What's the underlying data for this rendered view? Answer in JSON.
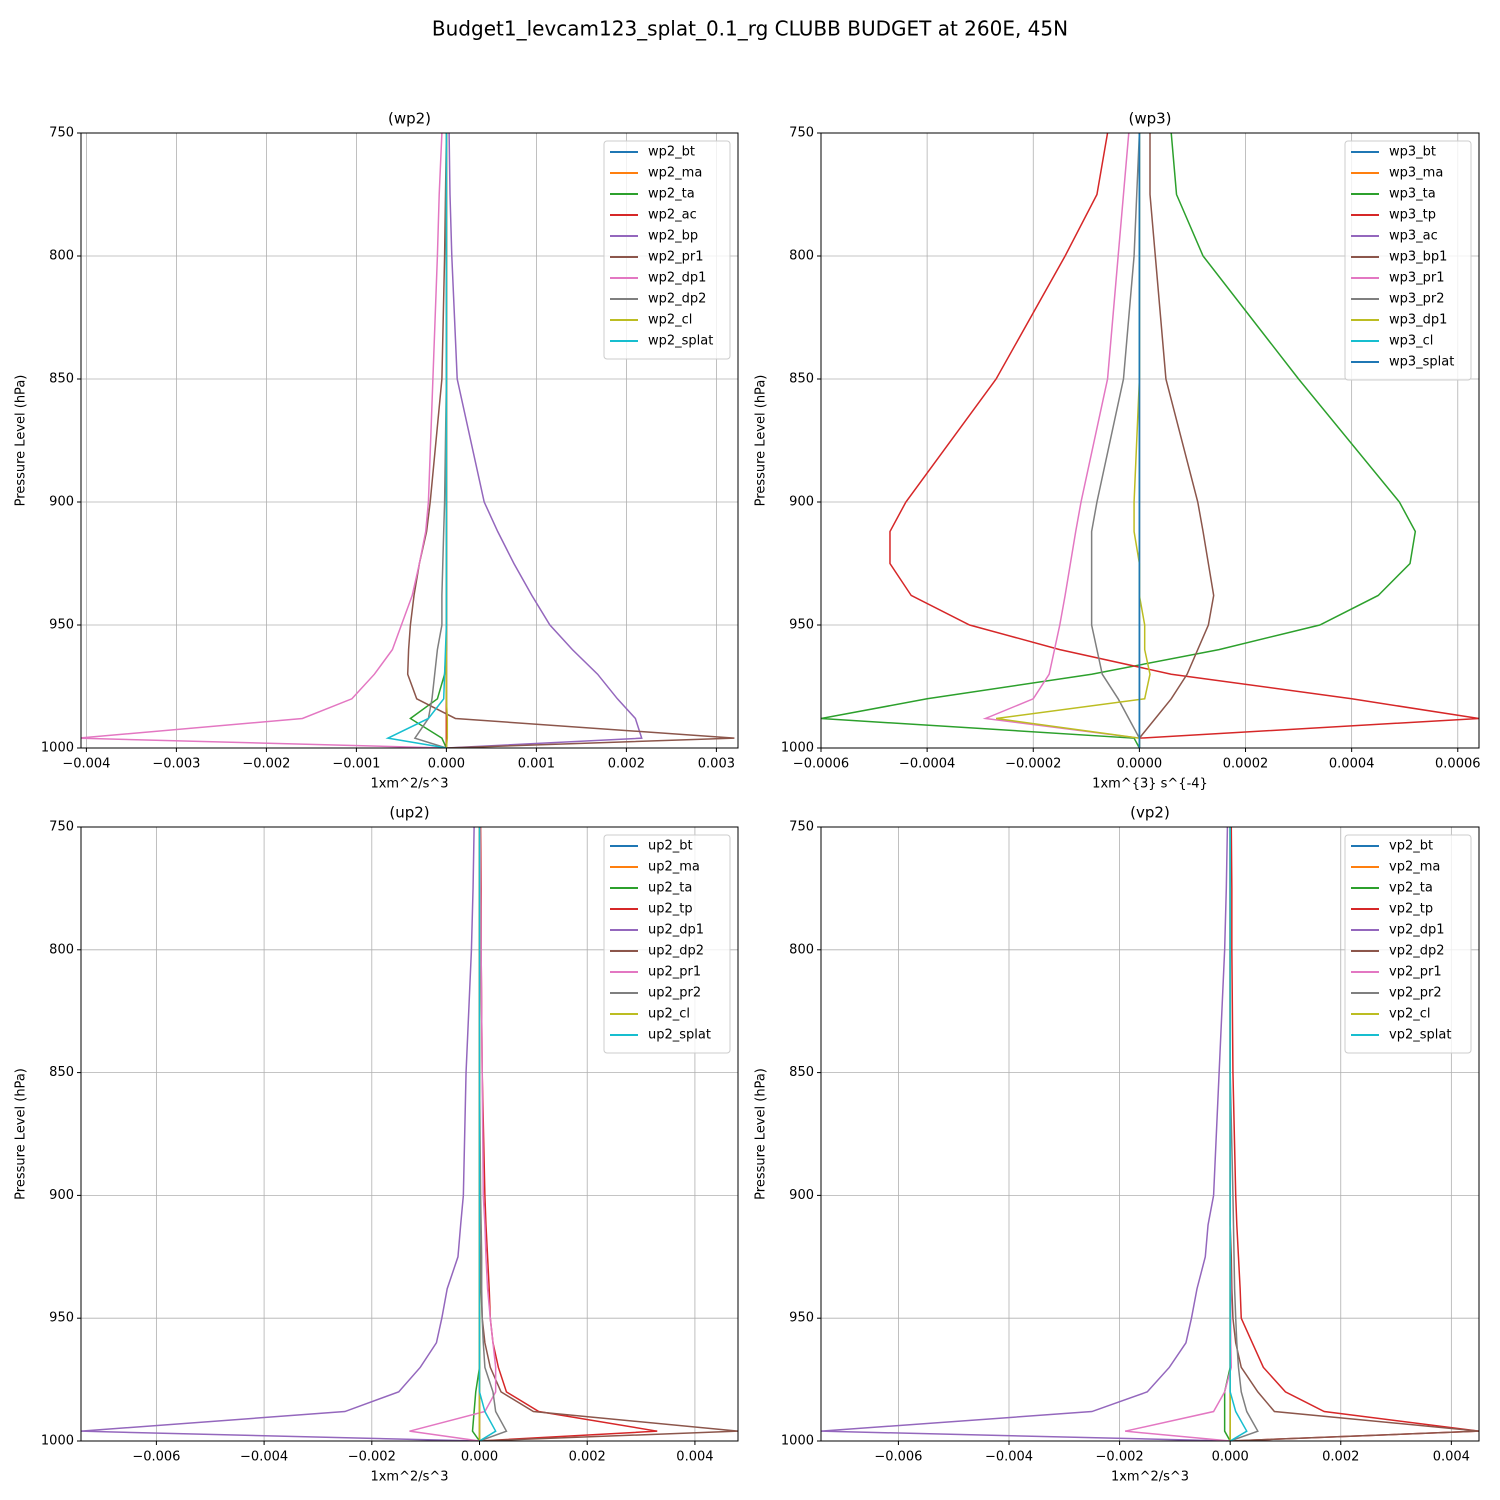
{
  "title": "Budget1_levcam123_splat_0.1_rg CLUBB BUDGET at 260E, 45N",
  "chart_data": [
    {
      "type": "line",
      "title": "(wp2)",
      "xlabel": "1xm^2/s^3",
      "ylabel": "Pressure Level (hPa)",
      "grid": true,
      "legend": "upper right",
      "y": [
        750,
        775,
        800,
        850,
        900,
        912,
        925,
        938,
        950,
        960,
        970,
        980,
        988,
        996,
        1000
      ],
      "ylim": [
        1000,
        750
      ],
      "yticks": [
        750,
        800,
        850,
        900,
        950,
        1000
      ],
      "xlim": [
        -0.00406,
        0.00324
      ],
      "xticks": [
        {
          "value": -0.004,
          "label": "−0.004"
        },
        {
          "value": -0.003,
          "label": "−0.003"
        },
        {
          "value": -0.002,
          "label": "−0.002"
        },
        {
          "value": -0.001,
          "label": "−0.001"
        },
        {
          "value": 0,
          "label": "0.000"
        },
        {
          "value": 0.001,
          "label": "0.001"
        },
        {
          "value": 0.002,
          "label": "0.002"
        },
        {
          "value": 0.003,
          "label": "0.003"
        }
      ],
      "series": [
        {
          "name": "wp2_bt",
          "color": "#1f77b4",
          "values": [
            0,
            0,
            0,
            0,
            0,
            0,
            0,
            0,
            0,
            0,
            0,
            0,
            0,
            0,
            0
          ]
        },
        {
          "name": "wp2_ma",
          "color": "#ff7f0e",
          "values": [
            0,
            0,
            0,
            0,
            0,
            0,
            0,
            0,
            0,
            0,
            0,
            0,
            0,
            0,
            0
          ]
        },
        {
          "name": "wp2_ta",
          "color": "#2ca02c",
          "values": [
            0,
            0,
            0,
            0,
            0,
            0,
            0,
            0,
            0,
            0,
            -2e-05,
            -0.0001,
            -0.0004,
            -5e-05,
            0
          ]
        },
        {
          "name": "wp2_ac",
          "color": "#d62728",
          "values": [
            0,
            0,
            0,
            0,
            0,
            0,
            0,
            0,
            0,
            0,
            0,
            0,
            0,
            0,
            0
          ]
        },
        {
          "name": "wp2_bp",
          "color": "#9467bd",
          "values": [
            3e-05,
            4e-05,
            6e-05,
            0.00012,
            0.00042,
            0.00057,
            0.00075,
            0.00095,
            0.00115,
            0.0014,
            0.00168,
            0.0019,
            0.0021,
            0.00217,
            0
          ]
        },
        {
          "name": "wp2_pr1",
          "color": "#8c564b",
          "values": [
            0,
            -1e-05,
            -2e-05,
            -5e-05,
            -0.00018,
            -0.00022,
            -0.0003,
            -0.00036,
            -0.0004,
            -0.00042,
            -0.00043,
            -0.00033,
            0.0001,
            0.0032,
            0
          ]
        },
        {
          "name": "wp2_dp1",
          "color": "#e377c2",
          "values": [
            -5e-05,
            -8e-05,
            -0.0001,
            -0.00015,
            -0.0002,
            -0.00023,
            -0.0003,
            -0.00038,
            -0.0005,
            -0.0006,
            -0.0008,
            -0.00105,
            -0.0016,
            -0.0041,
            0
          ]
        },
        {
          "name": "wp2_dp2",
          "color": "#7f7f7f",
          "values": [
            0,
            0,
            0,
            0,
            -2e-05,
            -3e-05,
            -4e-05,
            -5e-05,
            -5e-05,
            -0.0001,
            -0.00013,
            -0.00016,
            -0.0002,
            -0.00035,
            0
          ]
        },
        {
          "name": "wp2_cl",
          "color": "#bcbd22",
          "values": [
            0,
            0,
            0,
            0,
            0,
            0,
            0,
            0,
            0,
            0,
            0,
            0,
            1e-05,
            1e-05,
            0
          ]
        },
        {
          "name": "wp2_splat",
          "color": "#17becf",
          "values": [
            0,
            0,
            0,
            0,
            0,
            0,
            0,
            0,
            0,
            -1e-05,
            -2e-05,
            -3e-05,
            -0.0002,
            -0.00065,
            0
          ]
        }
      ]
    },
    {
      "type": "line",
      "title": "(wp3)",
      "xlabel": "1xm^{3} s^{-4}",
      "ylabel": "Pressure Level (hPa)",
      "grid": true,
      "legend": "upper right",
      "y": [
        750,
        775,
        800,
        850,
        900,
        912,
        925,
        938,
        950,
        960,
        970,
        980,
        988,
        996,
        1000
      ],
      "ylim": [
        1000,
        750
      ],
      "yticks": [
        750,
        800,
        850,
        900,
        950,
        1000
      ],
      "xlim": [
        -0.0006,
        0.00064
      ],
      "xticks": [
        {
          "value": -0.0006,
          "label": "−0.0006"
        },
        {
          "value": -0.0004,
          "label": "−0.0004"
        },
        {
          "value": -0.0002,
          "label": "−0.0002"
        },
        {
          "value": 0,
          "label": "0.0000"
        },
        {
          "value": 0.0002,
          "label": "0.0002"
        },
        {
          "value": 0.0004,
          "label": "0.0004"
        },
        {
          "value": 0.0006,
          "label": "0.0006"
        }
      ],
      "series": [
        {
          "name": "wp3_bt",
          "color": "#1f77b4",
          "values": [
            0,
            0,
            0,
            0,
            0,
            0,
            0,
            0,
            0,
            0,
            0,
            0,
            0,
            0,
            0
          ]
        },
        {
          "name": "wp3_ma",
          "color": "#ff7f0e",
          "values": [
            0,
            0,
            0,
            0,
            0,
            0,
            0,
            0,
            0,
            0,
            0,
            0,
            0,
            0,
            0
          ]
        },
        {
          "name": "wp3_ta",
          "color": "#2ca02c",
          "values": [
            6e-05,
            7e-05,
            0.00012,
            0.0003,
            0.00049,
            0.00052,
            0.00051,
            0.00045,
            0.00034,
            0.00015,
            -9e-05,
            -0.0004,
            -0.0006,
            -1e-05,
            0
          ]
        },
        {
          "name": "wp3_tp",
          "color": "#d62728",
          "values": [
            -6e-05,
            -8e-05,
            -0.00014,
            -0.00027,
            -0.00044,
            -0.00047,
            -0.00047,
            -0.00043,
            -0.00032,
            -0.00015,
            6e-05,
            0.0004,
            0.00064,
            0,
            0
          ]
        },
        {
          "name": "wp3_ac",
          "color": "#9467bd",
          "values": [
            0,
            0,
            0,
            0,
            0,
            0,
            0,
            0,
            0,
            0,
            0,
            0,
            0,
            0,
            0
          ]
        },
        {
          "name": "wp3_bp1",
          "color": "#8c564b",
          "values": [
            2e-05,
            2e-05,
            3e-05,
            5e-05,
            0.00011,
            0.00012,
            0.00013,
            0.00014,
            0.00013,
            0.00011,
            9e-05,
            6e-05,
            3e-05,
            0,
            0
          ]
        },
        {
          "name": "wp3_pr1",
          "color": "#e377c2",
          "values": [
            -2e-05,
            -3e-05,
            -4e-05,
            -6e-05,
            -0.00011,
            -0.00012,
            -0.00013,
            -0.00014,
            -0.00015,
            -0.00016,
            -0.00017,
            -0.0002,
            -0.00029,
            0,
            0
          ]
        },
        {
          "name": "wp3_pr2",
          "color": "#7f7f7f",
          "values": [
            0,
            -5e-06,
            -1e-05,
            -3e-05,
            -8e-05,
            -9e-05,
            -9e-05,
            -9e-05,
            -9e-05,
            -8e-05,
            -7e-05,
            -4e-05,
            -2e-05,
            0,
            0
          ]
        },
        {
          "name": "wp3_dp1",
          "color": "#bcbd22",
          "values": [
            0,
            0,
            0,
            0,
            -1e-05,
            -1e-05,
            0,
            0,
            1e-05,
            1e-05,
            2e-05,
            1e-05,
            -0.00027,
            0,
            0
          ]
        },
        {
          "name": "wp3_cl",
          "color": "#17becf",
          "values": [
            0,
            0,
            0,
            0,
            0,
            0,
            0,
            0,
            0,
            0,
            0,
            0,
            0,
            0,
            0
          ]
        },
        {
          "name": "wp3_splat",
          "color": "#1f77b4",
          "values": [
            0,
            0,
            0,
            0,
            0,
            0,
            0,
            0,
            0,
            0,
            0,
            0,
            0,
            0,
            0
          ]
        }
      ]
    },
    {
      "type": "line",
      "title": "(up2)",
      "xlabel": "1xm^2/s^3",
      "ylabel": "Pressure Level (hPa)",
      "grid": true,
      "legend": "upper right",
      "y": [
        750,
        775,
        800,
        850,
        900,
        912,
        925,
        938,
        950,
        960,
        970,
        980,
        988,
        996,
        1000
      ],
      "ylim": [
        1000,
        750
      ],
      "yticks": [
        750,
        800,
        850,
        900,
        950,
        1000
      ],
      "xlim": [
        -0.0074,
        0.0048
      ],
      "xticks": [
        {
          "value": -0.006,
          "label": "−0.006"
        },
        {
          "value": -0.004,
          "label": "−0.004"
        },
        {
          "value": -0.002,
          "label": "−0.002"
        },
        {
          "value": 0,
          "label": "0.000"
        },
        {
          "value": 0.002,
          "label": "0.002"
        },
        {
          "value": 0.004,
          "label": "0.004"
        }
      ],
      "series": [
        {
          "name": "up2_bt",
          "color": "#1f77b4",
          "values": [
            0,
            0,
            0,
            0,
            0,
            0,
            0,
            0,
            0,
            0,
            0,
            0,
            0,
            0,
            0
          ]
        },
        {
          "name": "up2_ma",
          "color": "#ff7f0e",
          "values": [
            0,
            0,
            0,
            0,
            0,
            0,
            0,
            0,
            0,
            0,
            0,
            0,
            0,
            0,
            0
          ]
        },
        {
          "name": "up2_ta",
          "color": "#2ca02c",
          "values": [
            0,
            0,
            0,
            0,
            0,
            0,
            0,
            0,
            0,
            0,
            0,
            -7e-05,
            -0.0001,
            -0.00013,
            0
          ]
        },
        {
          "name": "up2_tp",
          "color": "#d62728",
          "values": [
            2e-05,
            3e-05,
            3e-05,
            5e-05,
            0.0001,
            0.00012,
            0.00015,
            0.00018,
            0.0002,
            0.00025,
            0.00035,
            0.0005,
            0.0011,
            0.0033,
            0
          ]
        },
        {
          "name": "up2_dp1",
          "color": "#9467bd",
          "values": [
            -0.0001,
            -0.00012,
            -0.00015,
            -0.00025,
            -0.0003,
            -0.00035,
            -0.0004,
            -0.0006,
            -0.0007,
            -0.0008,
            -0.0011,
            -0.0015,
            -0.0025,
            -0.0074,
            0
          ]
        },
        {
          "name": "up2_dp2",
          "color": "#8c564b",
          "values": [
            0,
            0,
            0,
            0,
            0,
            0,
            2e-05,
            3e-05,
            5e-05,
            0.0001,
            0.0002,
            0.0004,
            0.001,
            0.0048,
            0
          ]
        },
        {
          "name": "up2_pr1",
          "color": "#e377c2",
          "values": [
            1e-05,
            2e-05,
            3e-05,
            5e-05,
            7e-05,
            0.0001,
            0.00012,
            0.00015,
            0.0002,
            0.00025,
            0.0003,
            0.0003,
            0.0001,
            -0.0013,
            0
          ]
        },
        {
          "name": "up2_pr2",
          "color": "#7f7f7f",
          "values": [
            0,
            0,
            0,
            0,
            2e-05,
            3e-05,
            4e-05,
            4e-05,
            5e-05,
            7e-05,
            0.0001,
            0.00025,
            0.0003,
            0.0005,
            0
          ]
        },
        {
          "name": "up2_cl",
          "color": "#bcbd22",
          "values": [
            0,
            0,
            0,
            0,
            0,
            0,
            0,
            0,
            0,
            0,
            0,
            0,
            0,
            0,
            0
          ]
        },
        {
          "name": "up2_splat",
          "color": "#17becf",
          "values": [
            0,
            0,
            0,
            0,
            0,
            0,
            0,
            0,
            0,
            0,
            0,
            0,
            0.0001,
            0.0003,
            0
          ]
        }
      ]
    },
    {
      "type": "line",
      "title": "(vp2)",
      "xlabel": "1xm^2/s^3",
      "ylabel": "Pressure Level (hPa)",
      "grid": true,
      "legend": "upper right",
      "y": [
        750,
        775,
        800,
        850,
        900,
        912,
        925,
        938,
        950,
        960,
        970,
        980,
        988,
        996,
        1000
      ],
      "ylim": [
        1000,
        750
      ],
      "yticks": [
        750,
        800,
        850,
        900,
        950,
        1000
      ],
      "xlim": [
        -0.0074,
        0.0045
      ],
      "xticks": [
        {
          "value": -0.006,
          "label": "−0.006"
        },
        {
          "value": -0.004,
          "label": "−0.004"
        },
        {
          "value": -0.002,
          "label": "−0.002"
        },
        {
          "value": 0,
          "label": "0.000"
        },
        {
          "value": 0.002,
          "label": "0.002"
        },
        {
          "value": 0.004,
          "label": "0.004"
        }
      ],
      "series": [
        {
          "name": "vp2_bt",
          "color": "#1f77b4",
          "values": [
            0,
            0,
            0,
            0,
            0,
            0,
            0,
            0,
            0,
            0,
            0,
            0,
            0,
            0,
            0
          ]
        },
        {
          "name": "vp2_ma",
          "color": "#ff7f0e",
          "values": [
            0,
            0,
            0,
            0,
            0,
            0,
            0,
            0,
            0,
            0,
            0,
            0,
            0,
            0,
            0
          ]
        },
        {
          "name": "vp2_ta",
          "color": "#2ca02c",
          "values": [
            0,
            0,
            0,
            0,
            0,
            0,
            0,
            0,
            0,
            0,
            0,
            -0.0001,
            -0.0001,
            -0.0001,
            0
          ]
        },
        {
          "name": "vp2_tp",
          "color": "#d62728",
          "values": [
            2e-05,
            3e-05,
            3e-05,
            5e-05,
            0.0001,
            0.00012,
            0.00015,
            0.00018,
            0.0002,
            0.0004,
            0.0006,
            0.001,
            0.0017,
            0.0045,
            0
          ]
        },
        {
          "name": "vp2_dp1",
          "color": "#9467bd",
          "values": [
            -5e-05,
            -7e-05,
            -0.0001,
            -0.0002,
            -0.0003,
            -0.0004,
            -0.00045,
            -0.0006,
            -0.0007,
            -0.0008,
            -0.0011,
            -0.0015,
            -0.0025,
            -0.0074,
            0
          ]
        },
        {
          "name": "vp2_dp2",
          "color": "#8c564b",
          "values": [
            0,
            0,
            0,
            0,
            0,
            0,
            2e-05,
            3e-05,
            5e-05,
            0.0001,
            0.0002,
            0.0005,
            0.0008,
            0.0045,
            0
          ]
        },
        {
          "name": "vp2_pr1",
          "color": "#e377c2",
          "values": [
            0,
            0,
            0,
            0,
            0,
            0,
            0,
            1e-05,
            1e-05,
            1e-05,
            2e-05,
            -0.0001,
            -0.0003,
            -0.0019,
            0
          ]
        },
        {
          "name": "vp2_pr2",
          "color": "#7f7f7f",
          "values": [
            0,
            0,
            0,
            0,
            5e-05,
            6e-05,
            7e-05,
            8e-05,
            0.0001,
            0.00012,
            0.00015,
            0.0002,
            0.0003,
            0.0005,
            0
          ]
        },
        {
          "name": "vp2_cl",
          "color": "#bcbd22",
          "values": [
            0,
            0,
            0,
            0,
            0,
            0,
            0,
            0,
            0,
            0,
            0,
            0,
            0,
            0,
            0
          ]
        },
        {
          "name": "vp2_splat",
          "color": "#17becf",
          "values": [
            0,
            0,
            0,
            0,
            0,
            0,
            0,
            0,
            0,
            0,
            0,
            0,
            0.0001,
            0.0003,
            0
          ]
        }
      ]
    }
  ]
}
